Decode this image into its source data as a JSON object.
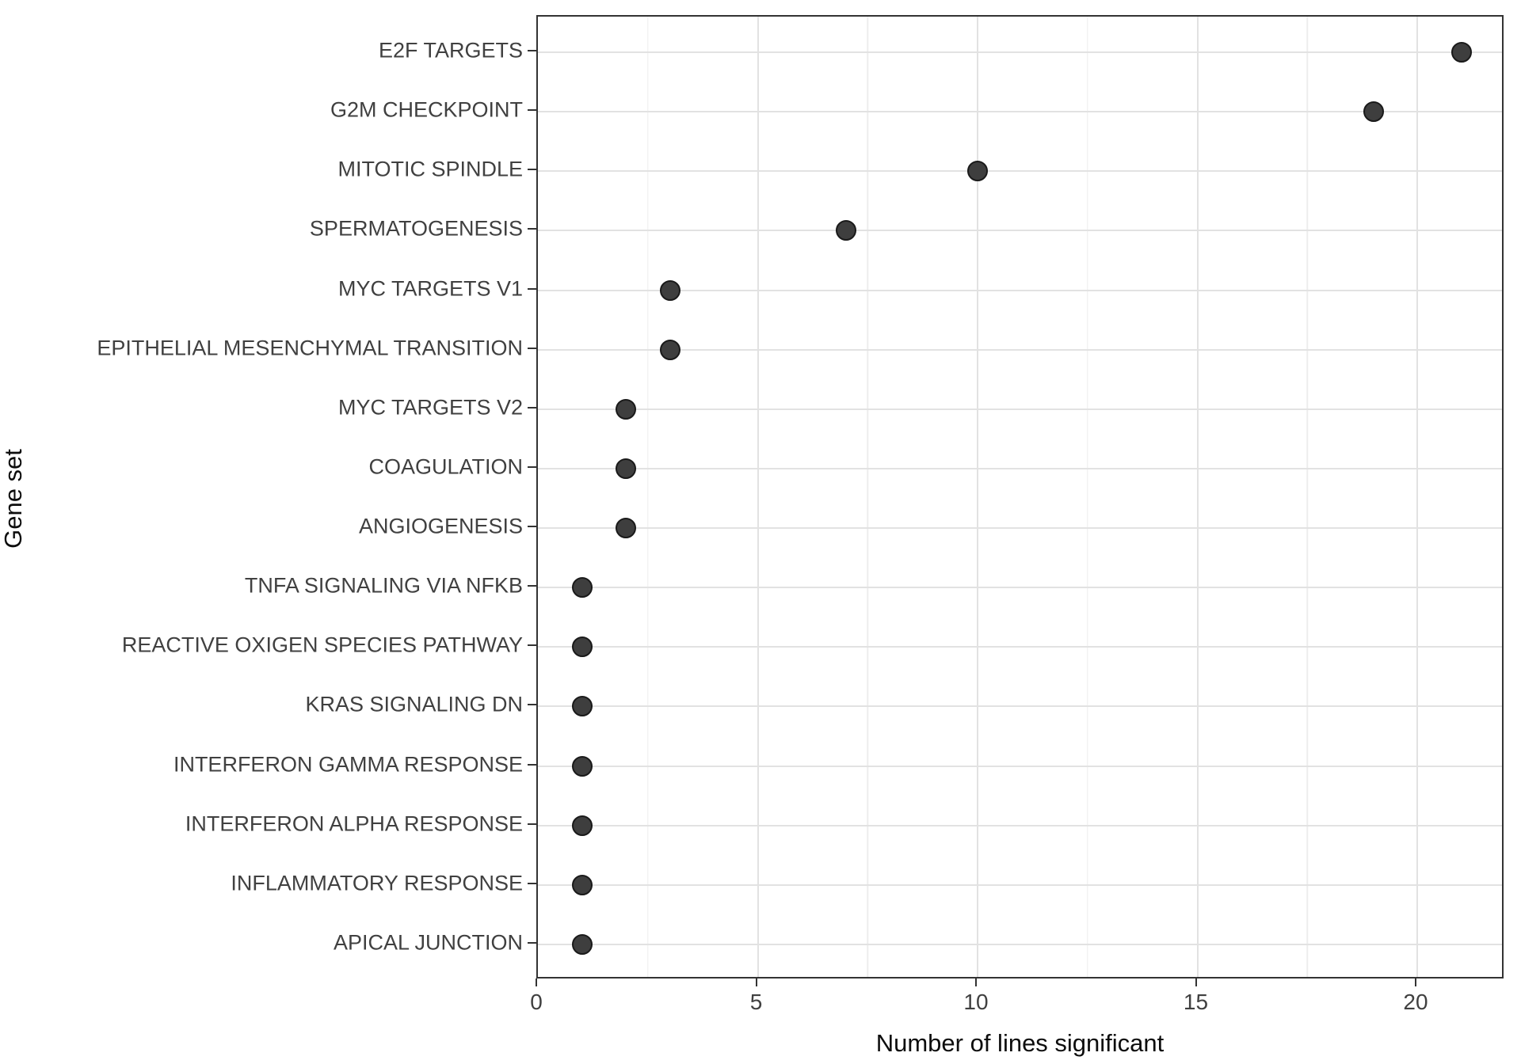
{
  "chart_data": {
    "type": "scatter",
    "subtype": "horizontal-dot-plot",
    "title": "",
    "xlabel": "Number of lines significant",
    "ylabel": "Gene set",
    "categories": [
      "E2F TARGETS",
      "G2M CHECKPOINT",
      "MITOTIC SPINDLE",
      "SPERMATOGENESIS",
      "MYC TARGETS V1",
      "EPITHELIAL MESENCHYMAL TRANSITION",
      "MYC TARGETS V2",
      "COAGULATION",
      "ANGIOGENESIS",
      "TNFA SIGNALING VIA NFKB",
      "REACTIVE OXIGEN SPECIES PATHWAY",
      "KRAS SIGNALING DN",
      "INTERFERON GAMMA RESPONSE",
      "INTERFERON ALPHA RESPONSE",
      "INFLAMMATORY RESPONSE",
      "APICAL JUNCTION"
    ],
    "values": [
      21,
      19,
      10,
      7,
      3,
      3,
      2,
      2,
      2,
      1,
      1,
      1,
      1,
      1,
      1,
      1
    ],
    "xlim": [
      0,
      22
    ],
    "x_major_ticks": [
      0,
      5,
      10,
      15,
      20
    ],
    "x_minor_ticks": [
      2.5,
      7.5,
      12.5,
      17.5
    ],
    "grid": "major-and-minor",
    "legend": "none",
    "colors": {
      "point_fill": "#3e3e3e",
      "point_stroke": "#1a1a1a",
      "grid_major": "#e2e2e2",
      "grid_minor": "#ededed",
      "panel_border": "#333333",
      "axis_text": "#404040",
      "axis_title": "#0d0d0d",
      "background": "#ffffff"
    }
  }
}
